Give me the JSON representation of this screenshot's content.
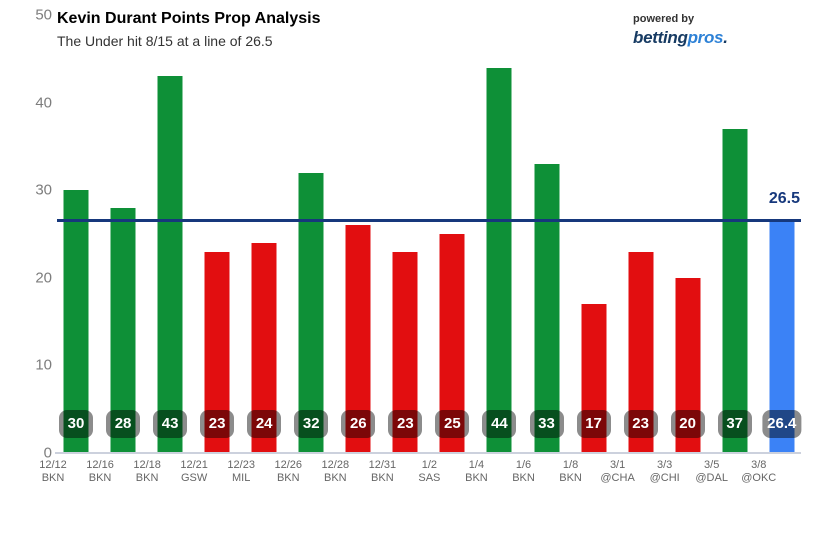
{
  "header": {
    "title": "Kevin Durant Points Prop Analysis",
    "subtitle": "The Under hit 8/15 at a line of 26.5"
  },
  "logo": {
    "powered_by": "powered by",
    "brand_dark": "betting",
    "brand_light": "pros",
    "brand_dot": "."
  },
  "axis": {
    "y_ticks": [
      "50",
      "40",
      "30",
      "20",
      "10",
      "0"
    ]
  },
  "prop_line": {
    "value": 26.5,
    "label": "26.5"
  },
  "colors": {
    "over": "#0e9037",
    "under": "#e20e10",
    "projection": "#3b82f6",
    "line": "#16387c"
  },
  "chart_data": {
    "type": "bar",
    "title": "Kevin Durant Points Prop Analysis",
    "subtitle": "The Under hit 8/15 at a line of 26.5",
    "xlabel": "",
    "ylabel": "",
    "ylim": [
      0,
      50
    ],
    "y_ticks": [
      0,
      10,
      20,
      30,
      40,
      50
    ],
    "grid": false,
    "legend": false,
    "prop_line_value": 26.5,
    "under_record": "8/15",
    "games": [
      {
        "date": "12/12",
        "opponent": "BKN",
        "value": 30,
        "label": "30",
        "result": "over"
      },
      {
        "date": "12/16",
        "opponent": "BKN",
        "value": 28,
        "label": "28",
        "result": "over"
      },
      {
        "date": "12/18",
        "opponent": "BKN",
        "value": 43,
        "label": "43",
        "result": "over"
      },
      {
        "date": "12/21",
        "opponent": "GSW",
        "value": 23,
        "label": "23",
        "result": "under"
      },
      {
        "date": "12/23",
        "opponent": "MIL",
        "value": 24,
        "label": "24",
        "result": "under"
      },
      {
        "date": "12/26",
        "opponent": "BKN",
        "value": 32,
        "label": "32",
        "result": "over"
      },
      {
        "date": "12/28",
        "opponent": "BKN",
        "value": 26,
        "label": "26",
        "result": "under"
      },
      {
        "date": "12/31",
        "opponent": "BKN",
        "value": 23,
        "label": "23",
        "result": "under"
      },
      {
        "date": "1/2",
        "opponent": "SAS",
        "value": 25,
        "label": "25",
        "result": "under"
      },
      {
        "date": "1/4",
        "opponent": "BKN",
        "value": 44,
        "label": "44",
        "result": "over"
      },
      {
        "date": "1/6",
        "opponent": "BKN",
        "value": 33,
        "label": "33",
        "result": "over"
      },
      {
        "date": "1/8",
        "opponent": "BKN",
        "value": 17,
        "label": "17",
        "result": "under"
      },
      {
        "date": "3/1",
        "opponent": "@CHA",
        "value": 23,
        "label": "23",
        "result": "under"
      },
      {
        "date": "3/3",
        "opponent": "@CHI",
        "value": 20,
        "label": "20",
        "result": "under"
      },
      {
        "date": "3/5",
        "opponent": "@DAL",
        "value": 37,
        "label": "37",
        "result": "over"
      },
      {
        "date": "3/8",
        "opponent": "@OKC",
        "value": 26.4,
        "label": "26.4",
        "result": "projection"
      }
    ]
  }
}
